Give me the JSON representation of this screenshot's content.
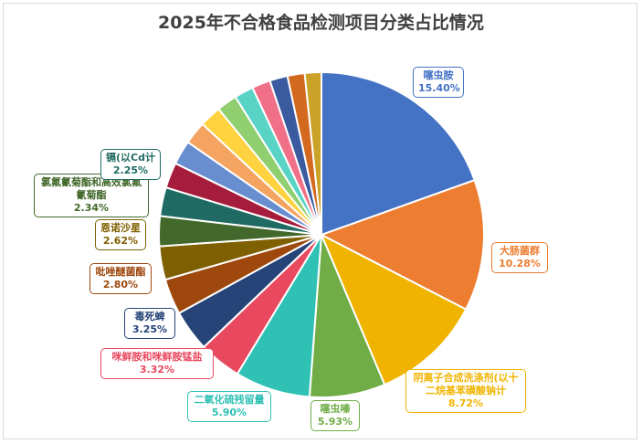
{
  "chart_data": {
    "type": "pie",
    "title": "2025年不合格食品检测项目分类占比情况",
    "slices": [
      {
        "name": "噻虫胺",
        "value": 15.4,
        "label": "15.40%",
        "color": "#4472c4",
        "labeled": true
      },
      {
        "name": "大肠菌群",
        "value": 10.28,
        "label": "10.28%",
        "color": "#ed7d31",
        "labeled": true
      },
      {
        "name": "阴离子合成洗涤剂(以十二烷基苯磺酸钠计",
        "value": 8.72,
        "label": "8.72%",
        "color": "#f0b400",
        "labeled": true
      },
      {
        "name": "噻虫嗪",
        "value": 5.93,
        "label": "5.93%",
        "color": "#70ad47",
        "labeled": true
      },
      {
        "name": "二氧化硫残留量",
        "value": 5.9,
        "label": "5.90%",
        "color": "#2ec1b4",
        "labeled": true
      },
      {
        "name": "咪鲜胺和咪鲜胺锰盐",
        "value": 3.32,
        "label": "3.32%",
        "color": "#e8495f",
        "labeled": true
      },
      {
        "name": "毒死蜱",
        "value": 3.25,
        "label": "3.25%",
        "color": "#264478",
        "labeled": true
      },
      {
        "name": "吡唑醚菌酯",
        "value": 2.8,
        "label": "2.80%",
        "color": "#9e480e",
        "labeled": true
      },
      {
        "name": "恩诺沙星",
        "value": 2.62,
        "label": "2.62%",
        "color": "#7f6000",
        "labeled": true
      },
      {
        "name": "氯氟氰菊酯和高效氯氟氰菊酯",
        "value": 2.34,
        "label": "2.34%",
        "color": "#43682b",
        "labeled": true
      },
      {
        "name": "镉(以Cd计",
        "value": 2.25,
        "label": "2.25%",
        "color": "#1f6b63",
        "labeled": true
      },
      {
        "name": "",
        "value": 2.0,
        "label": "",
        "color": "#a61c3c",
        "labeled": false
      },
      {
        "name": "",
        "value": 1.9,
        "label": "",
        "color": "#698ed0",
        "labeled": false
      },
      {
        "name": "",
        "value": 1.8,
        "label": "",
        "color": "#f4a460",
        "labeled": false
      },
      {
        "name": "",
        "value": 1.7,
        "label": "",
        "color": "#ffd23f",
        "labeled": false
      },
      {
        "name": "",
        "value": 1.6,
        "label": "",
        "color": "#8fcf6f",
        "labeled": false
      },
      {
        "name": "",
        "value": 1.5,
        "label": "",
        "color": "#5ad3c7",
        "labeled": false
      },
      {
        "name": "",
        "value": 1.45,
        "label": "",
        "color": "#f07088",
        "labeled": false
      },
      {
        "name": "",
        "value": 1.4,
        "label": "",
        "color": "#3a5ba0",
        "labeled": false
      },
      {
        "name": "",
        "value": 1.35,
        "label": "",
        "color": "#d2691e",
        "labeled": false
      },
      {
        "name": "",
        "value": 1.3,
        "label": "",
        "color": "#c9a227",
        "labeled": false
      }
    ],
    "legend": "none"
  }
}
